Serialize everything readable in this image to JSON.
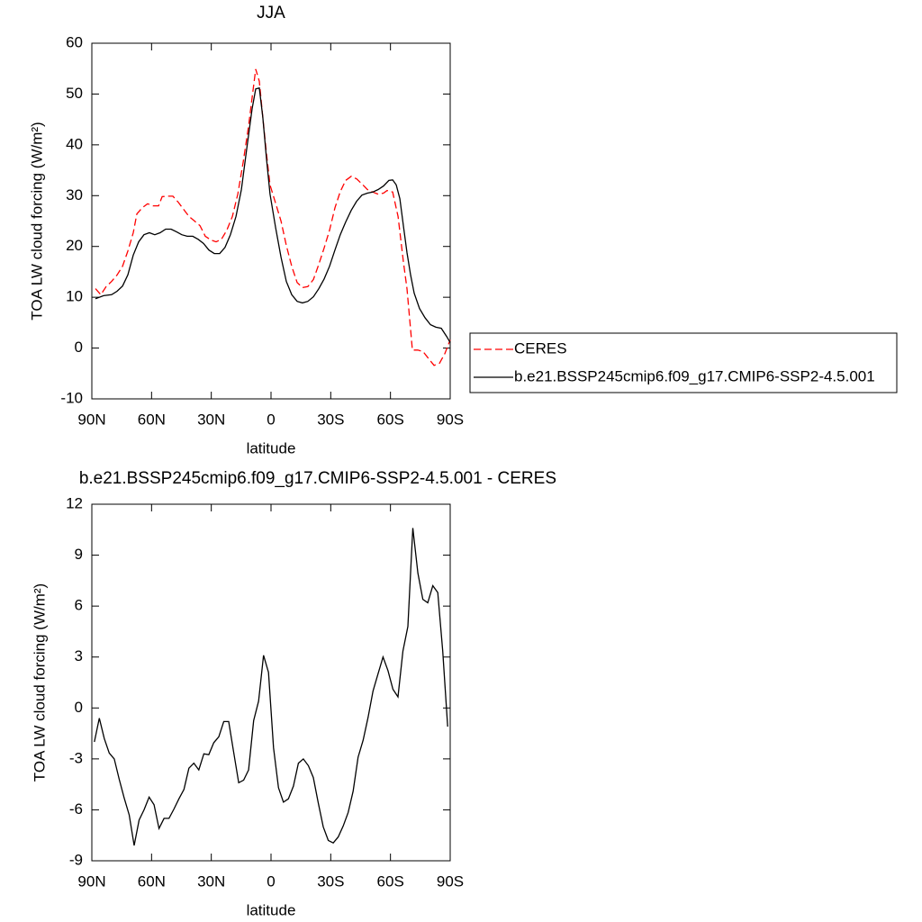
{
  "chart_data": [
    {
      "type": "line",
      "title": "JJA",
      "xlabel": "latitude",
      "ylabel": "TOA LW cloud forcing (W/m²)",
      "xlim": [
        90,
        -90
      ],
      "ylim": [
        -10,
        60
      ],
      "xticks": [
        {
          "value": 90,
          "label": "90N"
        },
        {
          "value": 60,
          "label": "60N"
        },
        {
          "value": 30,
          "label": "30N"
        },
        0,
        {
          "value": -30,
          "label": "30S"
        },
        {
          "value": -60,
          "label": "60S"
        },
        {
          "value": -90,
          "label": "90S"
        }
      ],
      "yticks": [
        -10,
        0,
        10,
        20,
        30,
        40,
        50,
        60
      ],
      "legend": "right",
      "series": [
        {
          "name": "CERES",
          "color": "#ff0000",
          "dash": "dashed",
          "x": [
            88.2,
            85.5,
            82.8,
            80.1,
            77.3,
            74.6,
            71.9,
            69.2,
            67.4,
            64.7,
            62.0,
            59.2,
            56.5,
            54.7,
            52.0,
            49.3,
            46.6,
            43.9,
            41.2,
            38.4,
            35.7,
            33.0,
            30.3,
            27.6,
            24.9,
            22.2,
            19.4,
            16.7,
            14.0,
            11.3,
            9.5,
            7.7,
            5.9,
            4.1,
            2.3,
            0.5,
            -2.3,
            -5.0,
            -7.7,
            -10.4,
            -13.1,
            -15.8,
            -18.5,
            -21.3,
            -24.0,
            -26.7,
            -29.4,
            -32.1,
            -34.8,
            -37.5,
            -40.3,
            -43.0,
            -45.7,
            -48.4,
            -51.1,
            -53.8,
            -56.5,
            -58.3,
            -61.1,
            -63.8,
            -66.5,
            -68.3,
            -70.1,
            -71.0,
            -73.7,
            -76.4,
            -79.2,
            -81.9,
            -84.6,
            -87.3,
            -90
          ],
          "values": [
            11.7,
            10.5,
            12.1,
            13.1,
            14.4,
            16.1,
            19.1,
            22.7,
            26.4,
            27.6,
            28.4,
            28.0,
            28.0,
            29.8,
            29.9,
            29.9,
            28.7,
            27.3,
            25.9,
            25.0,
            24.1,
            22.0,
            21.3,
            20.9,
            21.4,
            23.2,
            25.9,
            30.3,
            36.5,
            43.6,
            49.3,
            54.9,
            52.5,
            45.4,
            38.3,
            32.1,
            28.5,
            25.0,
            20.2,
            16.1,
            12.9,
            11.9,
            12.1,
            13.5,
            16.5,
            19.7,
            23.2,
            27.6,
            30.8,
            33.0,
            33.8,
            33.3,
            32.3,
            31.2,
            30.7,
            30.3,
            30.5,
            31.0,
            30.7,
            25.9,
            17.0,
            11.7,
            3.7,
            -0.4,
            -0.4,
            -0.7,
            -2.1,
            -3.4,
            -3.0,
            -1.1,
            1.6
          ]
        },
        {
          "name": "b.e21.BSSP245cmip6.f09_g17.CMIP6-SSP2-4.5.001",
          "color": "#000000",
          "dash": "solid",
          "x": [
            88.2,
            84.1,
            80.1,
            77.3,
            74.6,
            71.9,
            69.2,
            66.5,
            63.8,
            61.1,
            58.4,
            55.7,
            52.9,
            50.2,
            47.5,
            44.8,
            42.1,
            39.3,
            36.6,
            33.9,
            31.2,
            28.5,
            25.8,
            23.1,
            20.4,
            17.6,
            14.9,
            12.2,
            9.5,
            7.7,
            5.9,
            4.1,
            2.3,
            0.5,
            -2.3,
            -5.0,
            -7.7,
            -10.4,
            -13.1,
            -15.8,
            -18.5,
            -21.3,
            -24.0,
            -26.7,
            -29.4,
            -32.1,
            -34.8,
            -37.5,
            -40.3,
            -43.0,
            -45.7,
            -48.4,
            -51.1,
            -53.8,
            -56.5,
            -59.2,
            -61.1,
            -62.9,
            -64.7,
            -66.5,
            -68.3,
            -70.1,
            -71.9,
            -74.6,
            -77.3,
            -80.1,
            -82.8,
            -85.5,
            -88.2,
            -90
          ],
          "values": [
            9.7,
            10.3,
            10.5,
            11.2,
            12.2,
            14.4,
            18.3,
            20.9,
            22.3,
            22.7,
            22.3,
            22.7,
            23.4,
            23.4,
            22.9,
            22.3,
            22.0,
            22.0,
            21.4,
            20.6,
            19.3,
            18.6,
            18.6,
            19.8,
            22.3,
            25.9,
            31.2,
            39.2,
            47.1,
            51.0,
            51.2,
            45.4,
            37.4,
            30.3,
            23.7,
            17.9,
            13.1,
            10.5,
            9.2,
            8.9,
            9.2,
            10.1,
            11.7,
            13.6,
            16.1,
            19.3,
            22.3,
            24.8,
            27.1,
            28.9,
            30.1,
            30.5,
            30.7,
            31.2,
            31.9,
            33.0,
            33.1,
            32.1,
            29.4,
            24.1,
            18.8,
            14.4,
            10.8,
            7.8,
            6.0,
            4.6,
            4.1,
            3.9,
            2.3,
            1.1
          ]
        }
      ]
    },
    {
      "type": "line",
      "title": "b.e21.BSSP245cmip6.f09_g17.CMIP6-SSP2-4.5.001 - CERES",
      "xlabel": "latitude",
      "ylabel": "TOA LW cloud forcing (W/m²)",
      "xlim": [
        90,
        -90
      ],
      "ylim": [
        -9,
        12
      ],
      "xticks": [
        {
          "value": 90,
          "label": "90N"
        },
        {
          "value": 60,
          "label": "60N"
        },
        {
          "value": 30,
          "label": "30N"
        },
        0,
        {
          "value": -30,
          "label": "30S"
        },
        {
          "value": -60,
          "label": "60S"
        },
        {
          "value": -90,
          "label": "90S"
        }
      ],
      "yticks": [
        -9,
        -6,
        -3,
        0,
        3,
        6,
        9,
        12
      ],
      "series": [
        {
          "color": "#000000",
          "dash": "solid",
          "x": [
            88.75,
            86.25,
            83.75,
            81.25,
            78.75,
            76.25,
            73.75,
            71.25,
            68.75,
            66.25,
            63.75,
            61.25,
            58.75,
            56.25,
            53.75,
            51.25,
            48.75,
            46.25,
            43.75,
            41.25,
            38.75,
            36.25,
            33.75,
            31.25,
            28.75,
            26.25,
            23.75,
            21.25,
            18.75,
            16.25,
            13.75,
            11.25,
            8.75,
            6.25,
            3.75,
            1.25,
            -1.25,
            -3.75,
            -6.25,
            -8.75,
            -11.25,
            -13.75,
            -16.25,
            -18.75,
            -21.25,
            -23.75,
            -26.25,
            -28.75,
            -31.25,
            -33.75,
            -36.25,
            -38.75,
            -41.25,
            -43.75,
            -46.25,
            -48.75,
            -51.25,
            -53.75,
            -56.25,
            -58.75,
            -61.25,
            -63.75,
            -66.25,
            -68.75,
            -71.25,
            -73.75,
            -76.25,
            -78.75,
            -81.25,
            -83.75,
            -86.25,
            -88.75
          ],
          "values": [
            -2.0,
            -0.6,
            -1.8,
            -2.65,
            -3.0,
            -4.2,
            -5.3,
            -6.3,
            -8.1,
            -6.6,
            -6.0,
            -5.25,
            -5.7,
            -7.1,
            -6.5,
            -6.5,
            -5.95,
            -5.35,
            -4.8,
            -3.55,
            -3.25,
            -3.65,
            -2.7,
            -2.75,
            -2.05,
            -1.7,
            -0.8,
            -0.8,
            -2.6,
            -4.4,
            -4.25,
            -3.65,
            -0.75,
            0.4,
            3.1,
            2.1,
            -2.35,
            -4.7,
            -5.55,
            -5.35,
            -4.6,
            -3.25,
            -3.0,
            -3.4,
            -4.1,
            -5.6,
            -7.0,
            -7.8,
            -7.95,
            -7.6,
            -6.95,
            -6.15,
            -4.9,
            -2.9,
            -1.9,
            -0.55,
            1.0,
            2.0,
            3.0,
            2.2,
            1.1,
            0.65,
            3.35,
            4.8,
            10.6,
            7.95,
            6.4,
            6.2,
            7.2,
            6.8,
            3.35,
            -1.1
          ]
        }
      ]
    }
  ]
}
